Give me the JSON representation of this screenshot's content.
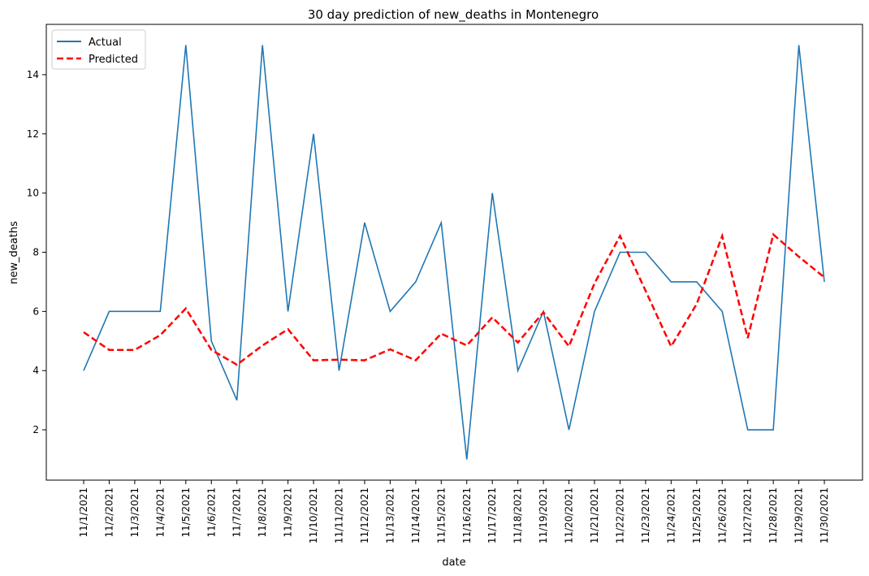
{
  "chart_data": {
    "type": "line",
    "title": "30 day prediction of new_deaths in Montenegro",
    "xlabel": "date",
    "ylabel": "new_deaths",
    "x": [
      "11/1/2021",
      "11/2/2021",
      "11/3/2021",
      "11/4/2021",
      "11/5/2021",
      "11/6/2021",
      "11/7/2021",
      "11/8/2021",
      "11/9/2021",
      "11/10/2021",
      "11/11/2021",
      "11/12/2021",
      "11/13/2021",
      "11/14/2021",
      "11/15/2021",
      "11/16/2021",
      "11/17/2021",
      "11/18/2021",
      "11/19/2021",
      "11/20/2021",
      "11/21/2021",
      "11/22/2021",
      "11/23/2021",
      "11/24/2021",
      "11/25/2021",
      "11/26/2021",
      "11/27/2021",
      "11/28/2021",
      "11/29/2021",
      "11/30/2021"
    ],
    "ylim": [
      0.3,
      15.7
    ],
    "yticks": [
      2,
      4,
      6,
      8,
      10,
      12,
      14
    ],
    "grid": false,
    "legend": "top-left",
    "series": [
      {
        "name": "Actual",
        "color": "#1f77b4",
        "style": "solid",
        "values": [
          4,
          6,
          6,
          6,
          15,
          5,
          3,
          15,
          6,
          12,
          4,
          9,
          6,
          7,
          9,
          1,
          10,
          4,
          6,
          2,
          6,
          8,
          8,
          7,
          7,
          6,
          2,
          2,
          15,
          7
        ]
      },
      {
        "name": "Predicted",
        "color": "#ff0000",
        "style": "dashed",
        "values": [
          5.3,
          4.7,
          4.7,
          5.2,
          6.1,
          4.7,
          4.2,
          4.85,
          5.4,
          4.35,
          4.37,
          4.35,
          4.72,
          4.35,
          5.25,
          4.85,
          5.8,
          4.95,
          5.97,
          4.82,
          6.95,
          8.55,
          6.7,
          4.82,
          6.25,
          8.55,
          5.1,
          8.6,
          7.85,
          7.15
        ]
      }
    ]
  }
}
